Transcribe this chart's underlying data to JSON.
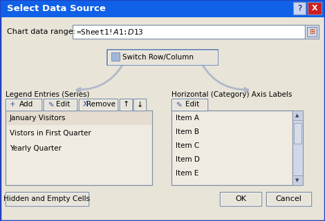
{
  "title": "Select Data Source",
  "title_bar_color": "#1060E8",
  "title_text_color": "#FFFFFF",
  "dialog_bg": "#E8E4D8",
  "dialog_border": "#2040C0",
  "data_range_label": "Chart data range:",
  "data_range_value": "=Sheet1!$A$1:$D$13",
  "input_bg": "#FFFFFF",
  "switch_button_text": "Switch Row/Column",
  "legend_label": "Legend Entries (Series)",
  "axis_label": "Horizontal (Category) Axis Labels",
  "legend_entries": [
    "January Visitors",
    "Vistors in First Quarter",
    "Yearly Quarter"
  ],
  "axis_entries": [
    "Item A",
    "Item B",
    "Item C",
    "Item D",
    "Item E"
  ],
  "bottom_left_button": "Hidden and Empty Cells",
  "bottom_ok": "OK",
  "bottom_cancel": "Cancel",
  "list_bg": "#F0EBE0",
  "list_selected_bg": "#E4DDD0",
  "button_bg": "#E4DFD4",
  "button_face": "#E8E4DA",
  "scrollbar_bg": "#C8D0E0",
  "scrollbar_thumb": "#D8DCE8"
}
